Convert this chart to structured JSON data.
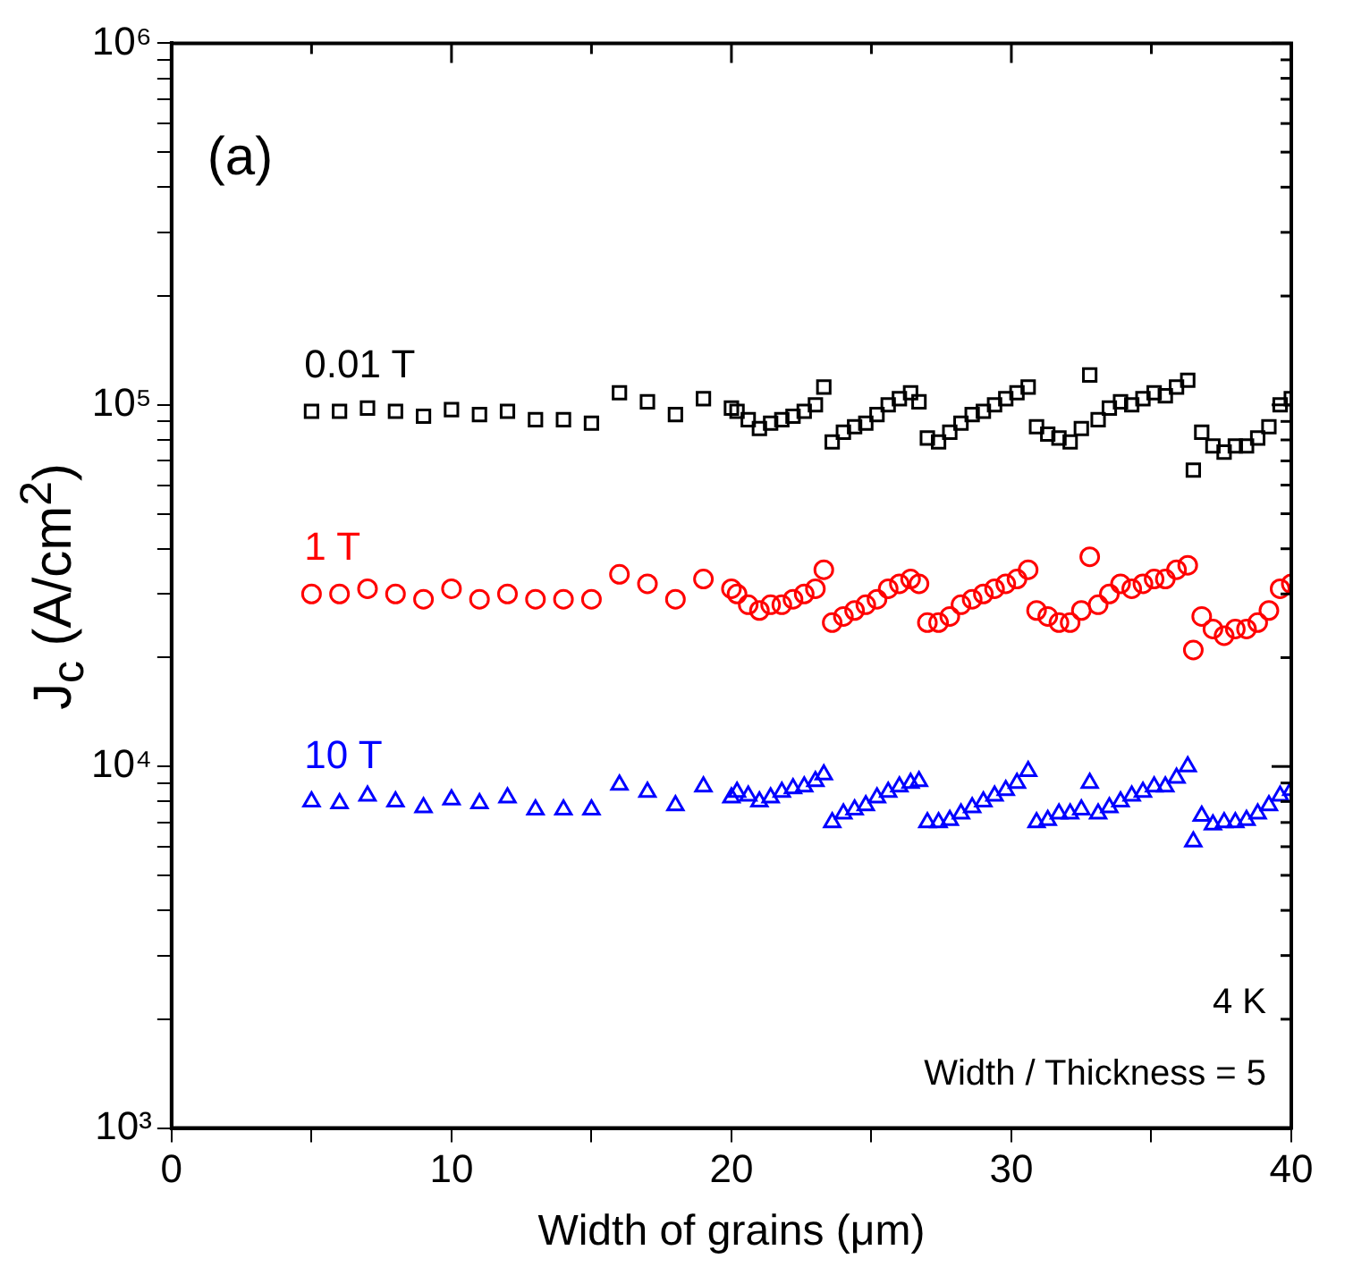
{
  "chart_data": {
    "type": "scatter",
    "xlabel": "Width of grains (μm)",
    "ylabel": "J$_{c}$ (A/cm$^{2}$)",
    "annotations": [
      "(a)",
      "4 K",
      "Width / Thickness = 5"
    ],
    "log": "y",
    "grid": false,
    "legend": false,
    "xlim": [
      0,
      40
    ],
    "xticks": [
      0,
      {
        "value": 5,
        "label": null
      },
      10,
      {
        "value": 15,
        "label": null
      },
      20,
      {
        "value": 25,
        "label": null
      },
      30,
      {
        "value": 35,
        "label": null
      },
      40
    ],
    "ylim": [
      1000,
      1000000
    ],
    "yticks": [
      {
        "value": 1000,
        "label": "10³"
      },
      {
        "value": 2000,
        "label": null
      },
      {
        "value": 3000,
        "label": null
      },
      {
        "value": 4000,
        "label": null
      },
      {
        "value": 5000,
        "label": null
      },
      {
        "value": 6000,
        "label": null
      },
      {
        "value": 7000,
        "label": null
      },
      {
        "value": 8000,
        "label": null
      },
      {
        "value": 9000,
        "label": null
      },
      {
        "value": 10000,
        "label": "10⁴"
      },
      {
        "value": 20000,
        "label": null
      },
      {
        "value": 30000,
        "label": null
      },
      {
        "value": 40000,
        "label": null
      },
      {
        "value": 50000,
        "label": null
      },
      {
        "value": 60000,
        "label": null
      },
      {
        "value": 70000,
        "label": null
      },
      {
        "value": 80000,
        "label": null
      },
      {
        "value": 90000,
        "label": null
      },
      {
        "value": 100000,
        "label": "10⁵"
      },
      {
        "value": 200000,
        "label": null
      },
      {
        "value": 300000,
        "label": null
      },
      {
        "value": 400000,
        "label": null
      },
      {
        "value": 500000,
        "label": null
      },
      {
        "value": 600000,
        "label": null
      },
      {
        "value": 700000,
        "label": null
      },
      {
        "value": 800000,
        "label": null
      },
      {
        "value": 900000,
        "label": null
      },
      {
        "value": 1000000,
        "label": "10⁶"
      }
    ],
    "x": [
      5,
      6,
      7,
      8,
      9,
      10,
      11,
      12,
      13,
      14,
      15,
      16,
      17,
      18,
      19,
      20,
      20.2,
      20.6,
      21,
      21.4,
      21.8,
      22.2,
      22.6,
      23,
      23.3,
      23.6,
      24,
      24.4,
      24.8,
      25.2,
      25.6,
      26,
      26.4,
      26.7,
      27,
      27.4,
      27.8,
      28.2,
      28.6,
      29,
      29.4,
      29.8,
      30.2,
      30.6,
      30.9,
      31.3,
      31.7,
      32.1,
      32.5,
      32.8,
      33.1,
      33.5,
      33.9,
      34.3,
      34.7,
      35.1,
      35.5,
      35.9,
      36.3,
      36.5,
      36.8,
      37.2,
      37.6,
      38,
      38.4,
      38.8,
      39.2,
      39.6,
      40
    ],
    "series": [
      {
        "name": "0.01 T",
        "color": "#000000",
        "marker": "square",
        "values": [
          96000,
          96000,
          98000,
          96000,
          93000,
          97000,
          94000,
          96000,
          91000,
          91000,
          89000,
          108000,
          102000,
          94000,
          104000,
          98000,
          96000,
          91000,
          86000,
          89000,
          91000,
          93000,
          96000,
          100000,
          112000,
          79000,
          84000,
          87000,
          89000,
          94000,
          100000,
          104000,
          108000,
          102000,
          81000,
          79000,
          84000,
          89000,
          94000,
          96000,
          100000,
          104000,
          108000,
          112000,
          87000,
          83000,
          81000,
          79000,
          86000,
          121000,
          91000,
          98000,
          102000,
          100000,
          104000,
          108000,
          106000,
          112000,
          117000,
          66000,
          84000,
          77000,
          74000,
          77000,
          77000,
          81000,
          87000,
          100000,
          104000
        ]
      },
      {
        "name": "1 T",
        "color": "#ff0000",
        "marker": "circle",
        "values": [
          30000,
          30000,
          31000,
          30000,
          29000,
          31000,
          29000,
          30000,
          29000,
          29000,
          29000,
          34000,
          32000,
          29000,
          33000,
          31000,
          30000,
          28000,
          27000,
          28000,
          28000,
          29000,
          30000,
          31000,
          35000,
          25000,
          26000,
          27000,
          28000,
          29000,
          31000,
          32000,
          33000,
          32000,
          25000,
          25000,
          26000,
          28000,
          29000,
          30000,
          31000,
          32000,
          33000,
          35000,
          27000,
          26000,
          25000,
          25000,
          27000,
          38000,
          28000,
          30000,
          32000,
          31000,
          32000,
          33000,
          33000,
          35000,
          36000,
          21000,
          26000,
          24000,
          23000,
          24000,
          24000,
          25000,
          27000,
          31000,
          32000
        ]
      },
      {
        "name": "10 T",
        "color": "#0000ff",
        "marker": "triangle",
        "values": [
          8000,
          7900,
          8300,
          8000,
          7700,
          8100,
          7900,
          8200,
          7600,
          7600,
          7600,
          8900,
          8500,
          7800,
          8800,
          8200,
          8500,
          8300,
          8000,
          8200,
          8500,
          8700,
          8800,
          9100,
          9500,
          7000,
          7400,
          7600,
          7800,
          8200,
          8500,
          8800,
          9000,
          9100,
          7000,
          7000,
          7100,
          7400,
          7700,
          8000,
          8300,
          8600,
          9000,
          9700,
          7000,
          7100,
          7400,
          7400,
          7600,
          9000,
          7400,
          7700,
          8000,
          8300,
          8500,
          8800,
          8800,
          9300,
          10000,
          6200,
          7300,
          6900,
          7000,
          7000,
          7100,
          7400,
          7800,
          8300,
          8600
        ]
      }
    ]
  }
}
